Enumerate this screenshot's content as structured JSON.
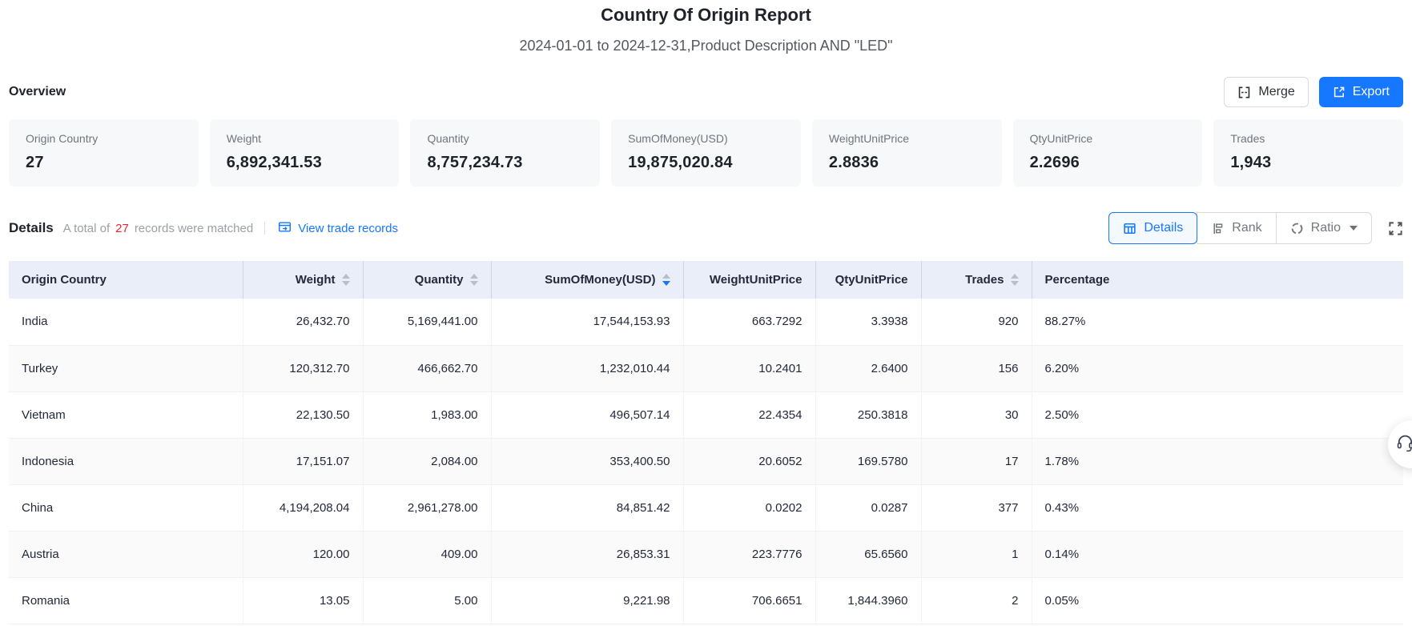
{
  "header": {
    "title": "Country Of Origin Report",
    "subtitle": "2024-01-01 to 2024-12-31,Product Description AND \"LED\""
  },
  "overview": {
    "heading": "Overview",
    "merge_label": "Merge",
    "export_label": "Export",
    "cards": [
      {
        "label": "Origin Country",
        "value": "27"
      },
      {
        "label": "Weight",
        "value": "6,892,341.53"
      },
      {
        "label": "Quantity",
        "value": "8,757,234.73"
      },
      {
        "label": "SumOfMoney(USD)",
        "value": "19,875,020.84"
      },
      {
        "label": "WeightUnitPrice",
        "value": "2.8836"
      },
      {
        "label": "QtyUnitPrice",
        "value": "2.2696"
      },
      {
        "label": "Trades",
        "value": "1,943"
      }
    ]
  },
  "details": {
    "heading": "Details",
    "total_prefix": "A total of",
    "total_count": "27",
    "total_suffix": "records were matched",
    "view_link": "View trade records",
    "tabs": [
      {
        "label": "Details",
        "icon": "table-icon",
        "active": true
      },
      {
        "label": "Rank",
        "icon": "rank-icon",
        "active": false
      },
      {
        "label": "Ratio",
        "icon": "ratio-icon",
        "active": false,
        "has_caret": true
      }
    ],
    "fullscreen_icon": "fullscreen-icon"
  },
  "table": {
    "columns": [
      {
        "label": "Origin Country",
        "sortable": false,
        "align": "left"
      },
      {
        "label": "Weight",
        "sortable": true,
        "align": "right"
      },
      {
        "label": "Quantity",
        "sortable": true,
        "align": "right"
      },
      {
        "label": "SumOfMoney(USD)",
        "sortable": true,
        "align": "right",
        "sort": "desc"
      },
      {
        "label": "WeightUnitPrice",
        "sortable": false,
        "align": "right"
      },
      {
        "label": "QtyUnitPrice",
        "sortable": false,
        "align": "right"
      },
      {
        "label": "Trades",
        "sortable": true,
        "align": "right"
      },
      {
        "label": "Percentage",
        "sortable": false,
        "align": "left"
      }
    ],
    "rows": [
      [
        "India",
        "26,432.70",
        "5,169,441.00",
        "17,544,153.93",
        "663.7292",
        "3.3938",
        "920",
        "88.27%"
      ],
      [
        "Turkey",
        "120,312.70",
        "466,662.70",
        "1,232,010.44",
        "10.2401",
        "2.6400",
        "156",
        "6.20%"
      ],
      [
        "Vietnam",
        "22,130.50",
        "1,983.00",
        "496,507.14",
        "22.4354",
        "250.3818",
        "30",
        "2.50%"
      ],
      [
        "Indonesia",
        "17,151.07",
        "2,084.00",
        "353,400.50",
        "20.6052",
        "169.5780",
        "17",
        "1.78%"
      ],
      [
        "China",
        "4,194,208.04",
        "2,961,278.00",
        "84,851.42",
        "0.0202",
        "0.0287",
        "377",
        "0.43%"
      ],
      [
        "Austria",
        "120.00",
        "409.00",
        "26,853.31",
        "223.7776",
        "65.6560",
        "1",
        "0.14%"
      ],
      [
        "Romania",
        "13.05",
        "5.00",
        "9,221.98",
        "706.6651",
        "1,844.3960",
        "2",
        "0.05%"
      ]
    ]
  },
  "colors": {
    "accent_blue": "#1677ff",
    "danger_red": "#f5222d",
    "table_header_bg": "#e9eef9",
    "stripe_bg": "#fafafa",
    "card_bg": "#f7f8fa"
  }
}
